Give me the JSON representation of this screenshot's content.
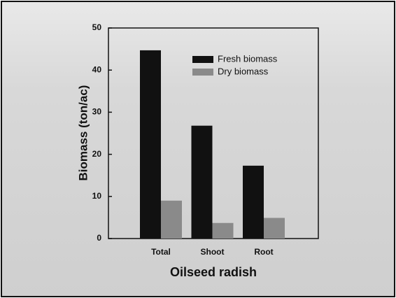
{
  "chart_data": {
    "type": "bar",
    "x_label": "Oilseed radish",
    "y_label": "Biomass (ton/ac)",
    "categories": [
      "Total",
      "Shoot",
      "Root"
    ],
    "series": [
      {
        "name": "Fresh biomass",
        "color": "#111111",
        "values": [
          44.7,
          26.8,
          17.3
        ]
      },
      {
        "name": "Dry biomass",
        "color": "#8a8a8a",
        "values": [
          9.0,
          3.7,
          4.9
        ]
      }
    ],
    "ylim": [
      0,
      50
    ],
    "yticks": [
      0,
      10,
      20,
      30,
      40,
      50
    ],
    "legend": "upper right"
  }
}
